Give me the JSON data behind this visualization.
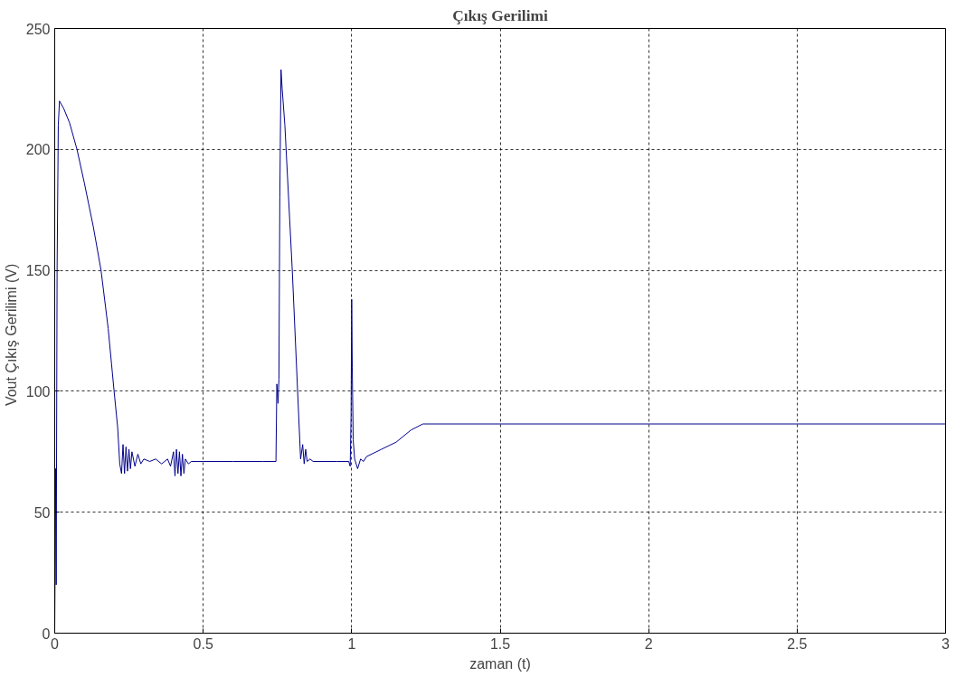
{
  "chart_data": {
    "type": "line",
    "title": "Çıkış Gerilimi",
    "xlabel": "zaman (t)",
    "ylabel": "Vout  Çıkış Gerilimi  (V)",
    "xlim": [
      0,
      3
    ],
    "ylim": [
      0,
      250
    ],
    "xticks": [
      0,
      0.5,
      1,
      1.5,
      2,
      2.5,
      3
    ],
    "yticks": [
      0,
      50,
      100,
      150,
      200,
      250
    ],
    "grid": true,
    "line_style": "solid",
    "series": [
      {
        "color": "#00008b",
        "x": [
          0,
          0.003,
          0.005,
          0.008,
          0.012,
          0.016,
          0.03,
          0.05,
          0.075,
          0.1,
          0.13,
          0.156,
          0.18,
          0.2,
          0.212,
          0.219,
          0.225,
          0.23,
          0.235,
          0.24,
          0.245,
          0.25,
          0.255,
          0.26,
          0.27,
          0.28,
          0.29,
          0.3,
          0.32,
          0.34,
          0.36,
          0.38,
          0.39,
          0.4,
          0.405,
          0.41,
          0.415,
          0.42,
          0.425,
          0.43,
          0.435,
          0.44,
          0.45,
          0.46,
          0.48,
          0.5,
          0.6,
          0.7,
          0.745,
          0.748,
          0.752,
          0.755,
          0.758,
          0.762,
          0.766,
          0.775,
          0.8,
          0.828,
          0.835,
          0.84,
          0.845,
          0.85,
          0.86,
          0.87,
          0.9,
          0.95,
          0.99,
          0.995,
          0.998,
          1.0,
          1.002,
          1.005,
          1.01,
          1.02,
          1.03,
          1.04,
          1.05,
          1.1,
          1.15,
          1.2,
          1.24,
          1.5,
          2,
          2.5,
          3
        ],
        "values": [
          0,
          68,
          20,
          150,
          210,
          220,
          217,
          211,
          200,
          186,
          168,
          150,
          126,
          100,
          85,
          70,
          66,
          78,
          66,
          77,
          67,
          76,
          68,
          75,
          69,
          74,
          70,
          72,
          71,
          72,
          70,
          72,
          69,
          75,
          65,
          76,
          66,
          75,
          65,
          74,
          66,
          72,
          70,
          71,
          71,
          71,
          71,
          71,
          71,
          103,
          95,
          105,
          180,
          233,
          225,
          210,
          150,
          72,
          78,
          70,
          76,
          71,
          72,
          71,
          71,
          71,
          71,
          69,
          90,
          138,
          110,
          80,
          72,
          68,
          72,
          71,
          73,
          76,
          79,
          84,
          86.5,
          86.5,
          86.5,
          86.5,
          86.5
        ]
      }
    ]
  }
}
